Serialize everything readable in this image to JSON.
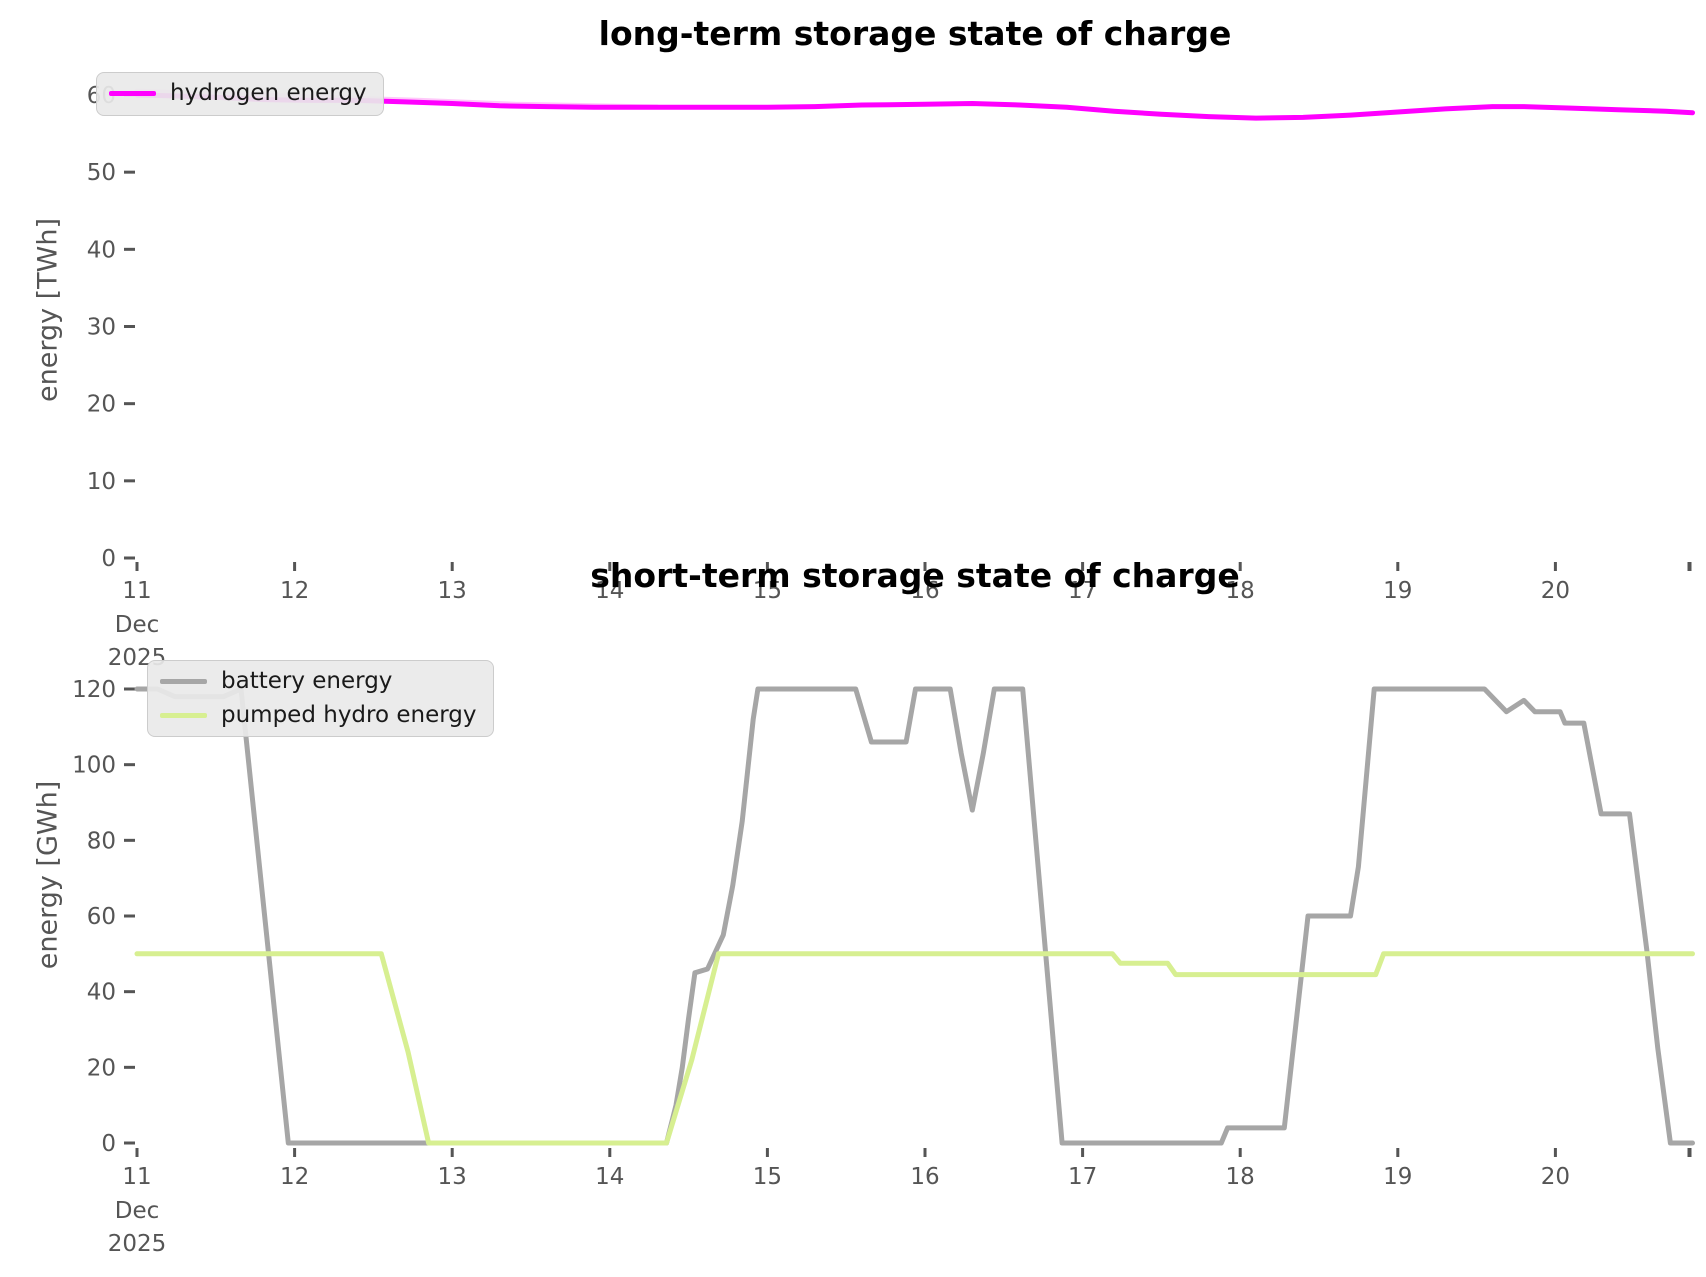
{
  "figure": {
    "background": "#ffffff",
    "tick_color": "#555555",
    "text_color": "#555555"
  },
  "chart_data": [
    {
      "type": "line",
      "title": "long-term storage state of charge",
      "xlabel": "",
      "ylabel": "energy [TWh]",
      "x_unit": "day of month",
      "x_start_sublabels": [
        "Dec",
        "2025"
      ],
      "xlim": [
        11,
        20.87
      ],
      "ylim": [
        0,
        63
      ],
      "grid": false,
      "legend_position": "upper left",
      "xticks": [
        11,
        12,
        13,
        14,
        15,
        16,
        17,
        18,
        19,
        20
      ],
      "xtick_labels": [
        "11",
        "12",
        "13",
        "14",
        "15",
        "16",
        "17",
        "18",
        "19",
        "20"
      ],
      "yticks": [
        0,
        10,
        20,
        30,
        40,
        50,
        60
      ],
      "series": [
        {
          "name": "hydrogen energy",
          "color": "#ff00ff",
          "width": 5,
          "opacity": 1,
          "in_legend": true,
          "points": [
            [
              11.0,
              60.0
            ],
            [
              11.2,
              59.9
            ],
            [
              11.5,
              59.7
            ],
            [
              11.8,
              59.4
            ],
            [
              12.1,
              59.3
            ],
            [
              12.4,
              59.3
            ],
            [
              12.7,
              59.1
            ],
            [
              13.0,
              58.9
            ],
            [
              13.3,
              58.6
            ],
            [
              13.6,
              58.5
            ],
            [
              13.9,
              58.4
            ],
            [
              14.2,
              58.4
            ],
            [
              14.6,
              58.4
            ],
            [
              15.0,
              58.4
            ],
            [
              15.3,
              58.5
            ],
            [
              15.6,
              58.7
            ],
            [
              16.0,
              58.8
            ],
            [
              16.3,
              58.9
            ],
            [
              16.6,
              58.7
            ],
            [
              16.9,
              58.4
            ],
            [
              17.2,
              57.9
            ],
            [
              17.5,
              57.5
            ],
            [
              17.8,
              57.2
            ],
            [
              18.1,
              57.0
            ],
            [
              18.4,
              57.1
            ],
            [
              18.7,
              57.4
            ],
            [
              19.0,
              57.8
            ],
            [
              19.3,
              58.2
            ],
            [
              19.6,
              58.5
            ],
            [
              19.8,
              58.5
            ],
            [
              20.1,
              58.3
            ],
            [
              20.4,
              58.1
            ],
            [
              20.7,
              57.9
            ],
            [
              20.87,
              57.7
            ]
          ]
        },
        {
          "name": "hydrogen energy (faint overlay)",
          "color": "#ff9bf5",
          "width": 5,
          "opacity": 0.55,
          "in_legend": false,
          "points": [
            [
              11.0,
              60.5
            ],
            [
              11.6,
              60.1
            ],
            [
              12.2,
              59.7
            ],
            [
              12.8,
              59.3
            ],
            [
              13.4,
              58.8
            ],
            [
              13.9,
              58.6
            ],
            [
              14.3,
              58.45
            ]
          ]
        }
      ]
    },
    {
      "type": "line",
      "title": "short-term storage state of charge",
      "xlabel": "",
      "ylabel": "energy [GWh]",
      "x_unit": "day of month",
      "x_start_sublabels": [
        "Dec",
        "2025"
      ],
      "xlim": [
        11,
        20.87
      ],
      "ylim": [
        0,
        126
      ],
      "grid": false,
      "legend_position": "upper left",
      "xticks": [
        11,
        12,
        13,
        14,
        15,
        16,
        17,
        18,
        19,
        20
      ],
      "xtick_labels": [
        "11",
        "12",
        "13",
        "14",
        "15",
        "16",
        "17",
        "18",
        "19",
        "20"
      ],
      "yticks": [
        0,
        20,
        40,
        60,
        80,
        100,
        120
      ],
      "series": [
        {
          "name": "battery energy",
          "color": "#a6a6a6",
          "width": 5,
          "opacity": 1,
          "in_legend": true,
          "points": [
            [
              11.0,
              120
            ],
            [
              11.13,
              120
            ],
            [
              11.24,
              118
            ],
            [
              11.55,
              118
            ],
            [
              11.66,
              120
            ],
            [
              11.96,
              0
            ],
            [
              14.36,
              0
            ],
            [
              14.42,
              10
            ],
            [
              14.46,
              20
            ],
            [
              14.5,
              33
            ],
            [
              14.54,
              45
            ],
            [
              14.62,
              46
            ],
            [
              14.72,
              55
            ],
            [
              14.78,
              68
            ],
            [
              14.84,
              85
            ],
            [
              14.91,
              112
            ],
            [
              14.94,
              120
            ],
            [
              15.56,
              120
            ],
            [
              15.66,
              106
            ],
            [
              15.88,
              106
            ],
            [
              15.94,
              120
            ],
            [
              16.16,
              120
            ],
            [
              16.23,
              103
            ],
            [
              16.3,
              88
            ],
            [
              16.37,
              103
            ],
            [
              16.44,
              120
            ],
            [
              16.62,
              120
            ],
            [
              16.87,
              0
            ],
            [
              17.88,
              0
            ],
            [
              17.92,
              4
            ],
            [
              18.28,
              4
            ],
            [
              18.43,
              60
            ],
            [
              18.7,
              60
            ],
            [
              18.75,
              73
            ],
            [
              18.85,
              120
            ],
            [
              19.55,
              120
            ],
            [
              19.69,
              114
            ],
            [
              19.8,
              117
            ],
            [
              19.87,
              114
            ],
            [
              20.03,
              114
            ],
            [
              20.06,
              111
            ],
            [
              20.18,
              111
            ],
            [
              20.29,
              87
            ],
            [
              20.47,
              87
            ],
            [
              20.58,
              51
            ],
            [
              20.65,
              25
            ],
            [
              20.73,
              0
            ],
            [
              20.87,
              0
            ]
          ]
        },
        {
          "name": "pumped hydro energy",
          "color": "#d7ef91",
          "width": 5,
          "opacity": 1,
          "in_legend": true,
          "points": [
            [
              11.0,
              50
            ],
            [
              12.55,
              50
            ],
            [
              12.72,
              24
            ],
            [
              12.85,
              0
            ],
            [
              14.36,
              0
            ],
            [
              14.52,
              22
            ],
            [
              14.69,
              50
            ],
            [
              17.19,
              50
            ],
            [
              17.24,
              47.5
            ],
            [
              17.54,
              47.5
            ],
            [
              17.59,
              44.5
            ],
            [
              18.86,
              44.5
            ],
            [
              18.91,
              50
            ],
            [
              20.87,
              50
            ]
          ]
        }
      ]
    }
  ]
}
